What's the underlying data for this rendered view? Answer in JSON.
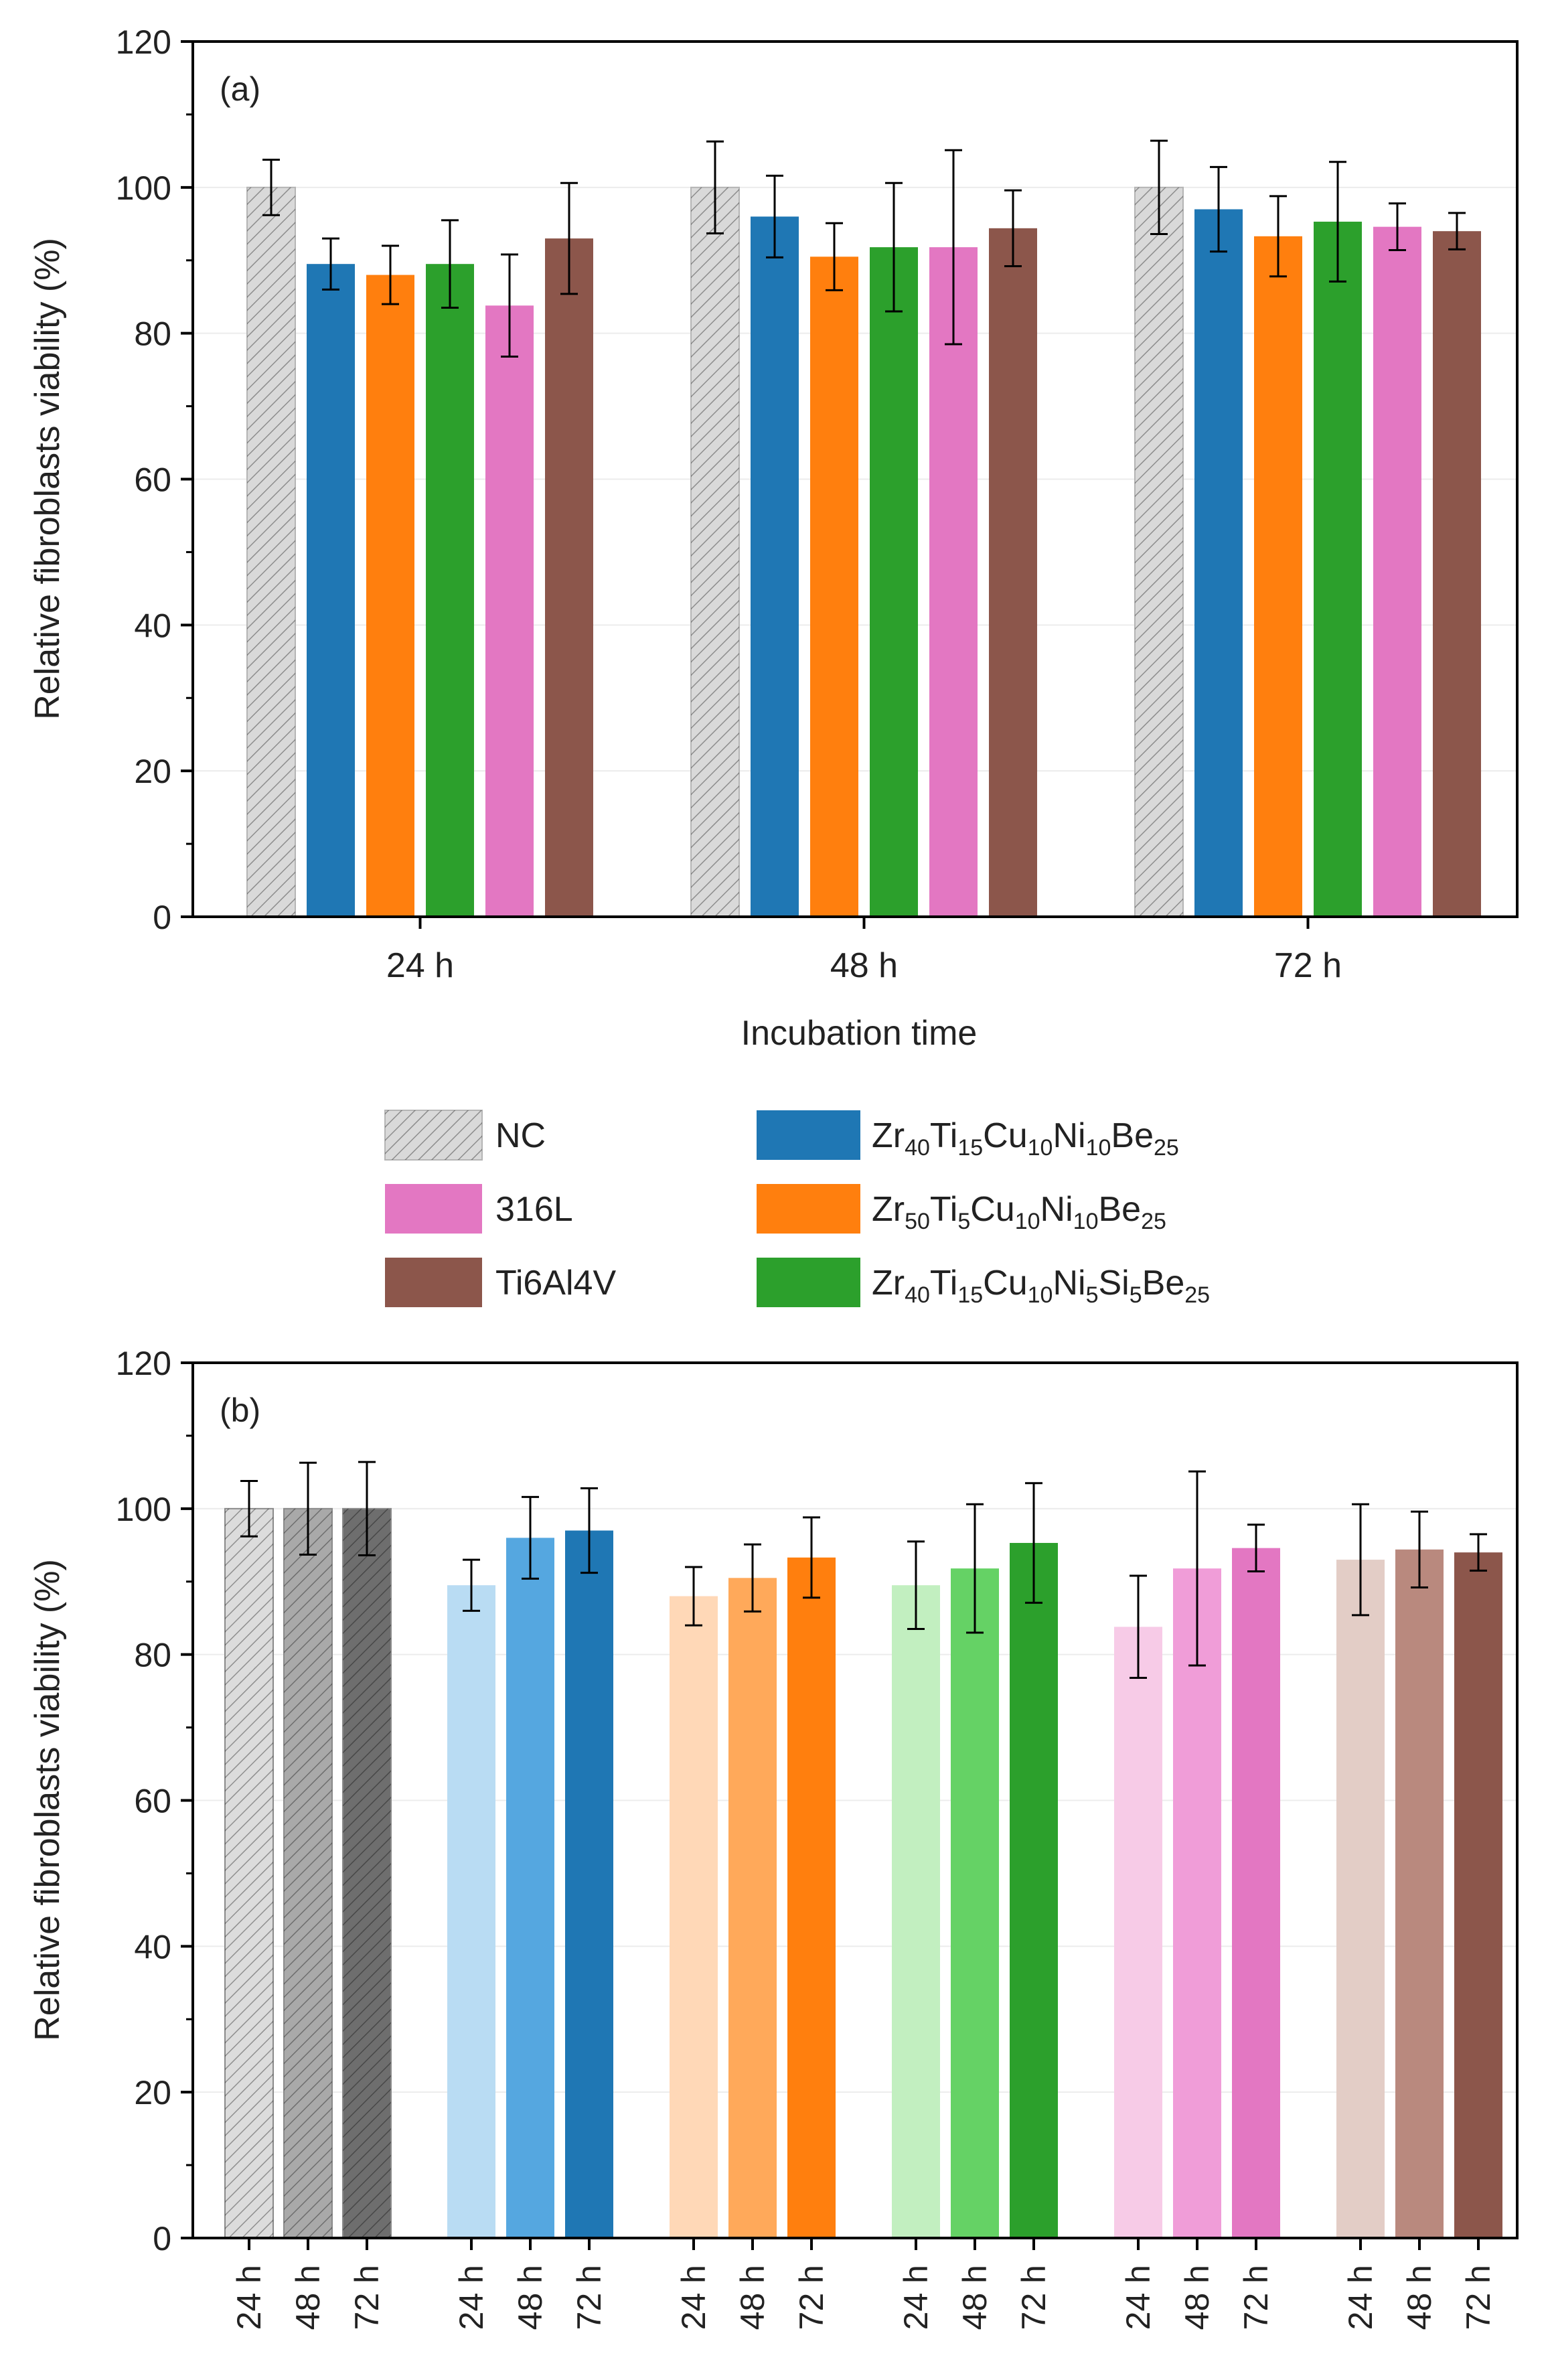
{
  "colors": {
    "nc": "#d9d9d9",
    "alloy1": "#1f77b4",
    "alloy2": "#ff7f0e",
    "alloy3": "#2ca02c",
    "ss316": "#e377c2",
    "ti64": "#8c564b",
    "axis": "#000000",
    "grid": "#ececec"
  },
  "legend": {
    "items": [
      {
        "key": "nc",
        "parts": [
          [
            "NC",
            "n"
          ]
        ]
      },
      {
        "key": "ss316",
        "parts": [
          [
            "316L",
            "n"
          ]
        ]
      },
      {
        "key": "ti64",
        "parts": [
          [
            "Ti6Al4V",
            "n"
          ]
        ]
      },
      {
        "key": "alloy1",
        "parts": [
          [
            "Zr",
            "n"
          ],
          [
            "40",
            "s"
          ],
          [
            "Ti",
            "n"
          ],
          [
            "15",
            "s"
          ],
          [
            "Cu",
            "n"
          ],
          [
            "10",
            "s"
          ],
          [
            "Ni",
            "n"
          ],
          [
            "10",
            "s"
          ],
          [
            "Be",
            "n"
          ],
          [
            "25",
            "s"
          ]
        ]
      },
      {
        "key": "alloy2",
        "parts": [
          [
            "Zr",
            "n"
          ],
          [
            "50",
            "s"
          ],
          [
            "Ti",
            "n"
          ],
          [
            "5",
            "s"
          ],
          [
            "Cu",
            "n"
          ],
          [
            "10",
            "s"
          ],
          [
            "Ni",
            "n"
          ],
          [
            "10",
            "s"
          ],
          [
            "Be",
            "n"
          ],
          [
            "25",
            "s"
          ]
        ]
      },
      {
        "key": "alloy3",
        "parts": [
          [
            "Zr",
            "n"
          ],
          [
            "40",
            "s"
          ],
          [
            "Ti",
            "n"
          ],
          [
            "15",
            "s"
          ],
          [
            "Cu",
            "n"
          ],
          [
            "10",
            "s"
          ],
          [
            "Ni",
            "n"
          ],
          [
            "5",
            "s"
          ],
          [
            "Si",
            "n"
          ],
          [
            "5",
            "s"
          ],
          [
            "Be",
            "n"
          ],
          [
            "25",
            "s"
          ]
        ]
      }
    ]
  },
  "chart_data": [
    {
      "type": "bar",
      "panel": "(a)",
      "xlabel": "Incubation time",
      "ylabel": "Relative fibroblasts viability (%)",
      "ylim": [
        0,
        120
      ],
      "yticks": [
        0,
        20,
        40,
        60,
        80,
        100,
        120
      ],
      "grid": true,
      "categories": [
        "24 h",
        "48 h",
        "72 h"
      ],
      "series": [
        {
          "name": "NC",
          "key": "nc",
          "values": [
            100,
            100,
            100
          ],
          "errors": [
            3.8,
            6.3,
            6.4
          ]
        },
        {
          "name": "Zr40Ti15Cu10Ni10Be25",
          "key": "alloy1",
          "values": [
            89.5,
            96,
            97
          ],
          "errors": [
            3.5,
            5.6,
            5.8
          ]
        },
        {
          "name": "Zr50Ti5Cu10Ni10Be25",
          "key": "alloy2",
          "values": [
            88,
            90.5,
            93.3
          ],
          "errors": [
            4,
            4.6,
            5.5
          ]
        },
        {
          "name": "Zr40Ti15Cu10Ni5Si5Be25",
          "key": "alloy3",
          "values": [
            89.5,
            91.8,
            95.3
          ],
          "errors": [
            6,
            8.8,
            8.2
          ]
        },
        {
          "name": "316L",
          "key": "ss316",
          "values": [
            83.8,
            91.8,
            94.6
          ],
          "errors": [
            7,
            13.3,
            3.2
          ]
        },
        {
          "name": "Ti6Al4V",
          "key": "ti64",
          "values": [
            93,
            94.4,
            94
          ],
          "errors": [
            7.6,
            5.2,
            2.5
          ]
        }
      ]
    },
    {
      "type": "bar",
      "panel": "(b)",
      "xlabel": "",
      "ylabel": "Relative fibroblasts viability (%)",
      "ylim": [
        0,
        120
      ],
      "yticks": [
        0,
        20,
        40,
        60,
        80,
        100,
        120
      ],
      "grid": true,
      "categories": [
        "24 h",
        "48 h",
        "72 h"
      ],
      "groups": [
        {
          "name": "NC",
          "key": "nc",
          "values": [
            100,
            100,
            100
          ],
          "errors": [
            3.8,
            6.3,
            6.4
          ],
          "fills": [
            "#dcdcdc",
            "#a9a9a9",
            "#6e6e6e"
          ]
        },
        {
          "name": "Zr40Ti15Cu10Ni10Be25",
          "key": "alloy1",
          "values": [
            89.5,
            96,
            97
          ],
          "errors": [
            3.5,
            5.6,
            5.8
          ],
          "fills": [
            "#b9dcf3",
            "#55a7e0",
            "#1f77b4"
          ]
        },
        {
          "name": "Zr50Ti5Cu10Ni10Be25",
          "key": "alloy2",
          "values": [
            88,
            90.5,
            93.3
          ],
          "errors": [
            4,
            4.6,
            5.5
          ],
          "fills": [
            "#ffd8b7",
            "#ffa95a",
            "#ff7f0e"
          ]
        },
        {
          "name": "Zr40Ti15Cu10Ni5Si5Be25",
          "key": "alloy3",
          "values": [
            89.5,
            91.8,
            95.3
          ],
          "errors": [
            6,
            8.8,
            8.2
          ],
          "fills": [
            "#c2efc0",
            "#65d265",
            "#2ca02c"
          ]
        },
        {
          "name": "316L",
          "key": "ss316",
          "values": [
            83.8,
            91.8,
            94.6
          ],
          "errors": [
            7,
            13.3,
            3.2
          ],
          "fills": [
            "#f7cbe7",
            "#f09dd8",
            "#e377c2"
          ]
        },
        {
          "name": "Ti6Al4V",
          "key": "ti64",
          "values": [
            93,
            94.4,
            94
          ],
          "errors": [
            7.6,
            5.2,
            2.5
          ],
          "fills": [
            "#e3cdc6",
            "#b9897e",
            "#8c564b"
          ]
        }
      ]
    }
  ]
}
